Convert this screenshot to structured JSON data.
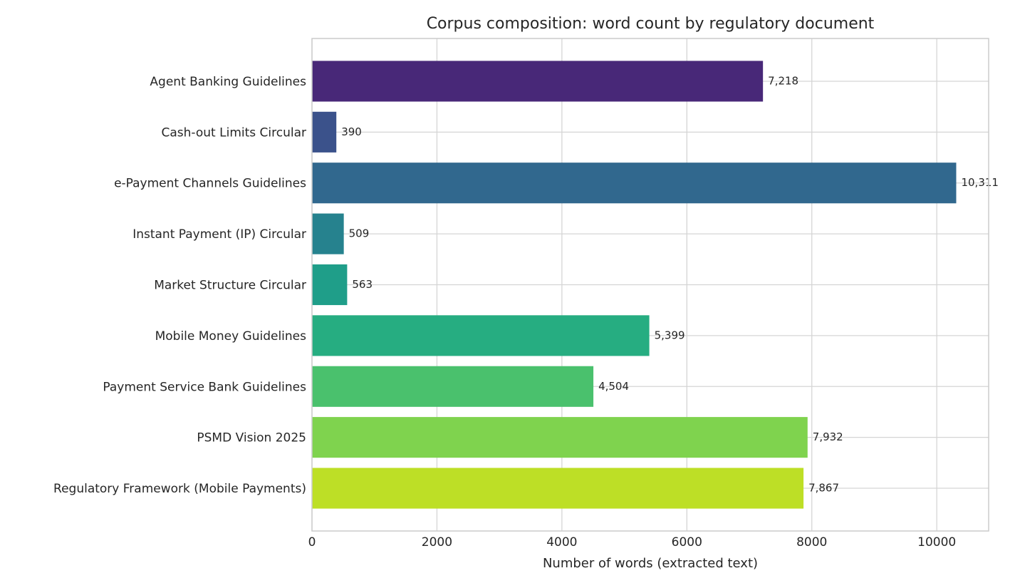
{
  "chart_data": {
    "type": "barh",
    "title": "Corpus composition: word count by regulatory document",
    "xlabel": "Number of words (extracted text)",
    "categories": [
      "Agent Banking Guidelines",
      "Cash-out Limits Circular",
      "e-Payment Channels Guidelines",
      "Instant Payment (IP) Circular",
      "Market Structure Circular",
      "Mobile Money Guidelines",
      "Payment Service Bank Guidelines",
      "PSMD Vision 2025",
      "Regulatory Framework (Mobile Payments)"
    ],
    "values": [
      7218,
      390,
      10311,
      509,
      563,
      5399,
      4504,
      7932,
      7867
    ],
    "value_labels": [
      "7,218",
      "390",
      "10,311",
      "509",
      "563",
      "5,399",
      "4,504",
      "7,932",
      "7,867"
    ],
    "colors": [
      "#482878",
      "#3b528b",
      "#31688e",
      "#26828e",
      "#1f9e89",
      "#26ad81",
      "#4ac16d",
      "#7fd34e",
      "#bddf26"
    ],
    "xlim": [
      0,
      10830
    ],
    "xticks": [
      0,
      2000,
      4000,
      6000,
      8000,
      10000
    ],
    "grid": true
  }
}
